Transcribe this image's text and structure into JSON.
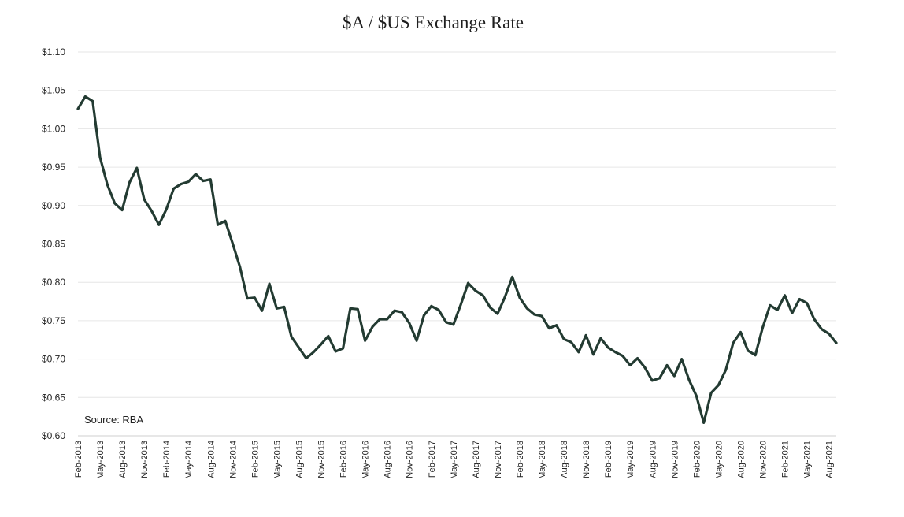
{
  "chart_data": {
    "type": "line",
    "title": "$A / $US Exchange Rate",
    "xlabel": "",
    "ylabel": "",
    "annotation": "Source: RBA",
    "ylim": [
      0.6,
      1.1
    ],
    "y_ticks": [
      0.6,
      0.65,
      0.7,
      0.75,
      0.8,
      0.85,
      0.9,
      0.95,
      1.0,
      1.05,
      1.1
    ],
    "y_tick_labels": [
      "$0.60",
      "$0.65",
      "$0.70",
      "$0.75",
      "$0.80",
      "$0.85",
      "$0.90",
      "$0.95",
      "$1.00",
      "$1.05",
      "$1.10"
    ],
    "x_tick_labels": [
      "Feb-2013",
      "May-2013",
      "Aug-2013",
      "Nov-2013",
      "Feb-2014",
      "May-2014",
      "Aug-2014",
      "Nov-2014",
      "Feb-2015",
      "May-2015",
      "Aug-2015",
      "Nov-2015",
      "Feb-2016",
      "May-2016",
      "Aug-2016",
      "Nov-2016",
      "Feb-2017",
      "May-2017",
      "Aug-2017",
      "Nov-2017",
      "Feb-2018",
      "May-2018",
      "Aug-2018",
      "Nov-2018",
      "Feb-2019",
      "May-2019",
      "Aug-2019",
      "Nov-2019",
      "Feb-2020",
      "May-2020",
      "Aug-2020",
      "Nov-2020",
      "Feb-2021",
      "May-2021",
      "Aug-2021"
    ],
    "x": [
      "Feb-2013",
      "Mar-2013",
      "Apr-2013",
      "May-2013",
      "Jun-2013",
      "Jul-2013",
      "Aug-2013",
      "Sep-2013",
      "Oct-2013",
      "Nov-2013",
      "Dec-2013",
      "Jan-2014",
      "Feb-2014",
      "Mar-2014",
      "Apr-2014",
      "May-2014",
      "Jun-2014",
      "Jul-2014",
      "Aug-2014",
      "Sep-2014",
      "Oct-2014",
      "Nov-2014",
      "Dec-2014",
      "Jan-2015",
      "Feb-2015",
      "Mar-2015",
      "Apr-2015",
      "May-2015",
      "Jun-2015",
      "Jul-2015",
      "Aug-2015",
      "Sep-2015",
      "Oct-2015",
      "Nov-2015",
      "Dec-2015",
      "Jan-2016",
      "Feb-2016",
      "Mar-2016",
      "Apr-2016",
      "May-2016",
      "Jun-2016",
      "Jul-2016",
      "Aug-2016",
      "Sep-2016",
      "Oct-2016",
      "Nov-2016",
      "Dec-2016",
      "Jan-2017",
      "Feb-2017",
      "Mar-2017",
      "Apr-2017",
      "May-2017",
      "Jun-2017",
      "Jul-2017",
      "Aug-2017",
      "Sep-2017",
      "Oct-2017",
      "Nov-2017",
      "Dec-2017",
      "Jan-2018",
      "Feb-2018",
      "Mar-2018",
      "Apr-2018",
      "May-2018",
      "Jun-2018",
      "Jul-2018",
      "Aug-2018",
      "Sep-2018",
      "Oct-2018",
      "Nov-2018",
      "Dec-2018",
      "Jan-2019",
      "Feb-2019",
      "Mar-2019",
      "Apr-2019",
      "May-2019",
      "Jun-2019",
      "Jul-2019",
      "Aug-2019",
      "Sep-2019",
      "Oct-2019",
      "Nov-2019",
      "Dec-2019",
      "Jan-2020",
      "Feb-2020",
      "Mar-2020",
      "Apr-2020",
      "May-2020",
      "Jun-2020",
      "Jul-2020",
      "Aug-2020",
      "Sep-2020",
      "Oct-2020",
      "Nov-2020",
      "Dec-2020",
      "Jan-2021",
      "Feb-2021",
      "Mar-2021",
      "Apr-2021",
      "May-2021",
      "Jun-2021",
      "Jul-2021",
      "Aug-2021",
      "Sep-2021"
    ],
    "series": [
      {
        "color": "#233b32",
        "values": [
          1.026,
          1.042,
          1.036,
          0.963,
          0.927,
          0.903,
          0.894,
          0.93,
          0.949,
          0.908,
          0.893,
          0.875,
          0.895,
          0.922,
          0.928,
          0.931,
          0.941,
          0.932,
          0.934,
          0.875,
          0.88,
          0.851,
          0.82,
          0.779,
          0.78,
          0.763,
          0.798,
          0.766,
          0.768,
          0.729,
          0.715,
          0.701,
          0.709,
          0.719,
          0.73,
          0.71,
          0.714,
          0.766,
          0.765,
          0.724,
          0.742,
          0.752,
          0.752,
          0.763,
          0.761,
          0.747,
          0.724,
          0.757,
          0.769,
          0.764,
          0.748,
          0.745,
          0.771,
          0.799,
          0.789,
          0.783,
          0.767,
          0.759,
          0.781,
          0.807,
          0.78,
          0.766,
          0.758,
          0.756,
          0.74,
          0.744,
          0.726,
          0.722,
          0.709,
          0.731,
          0.706,
          0.727,
          0.715,
          0.709,
          0.704,
          0.692,
          0.701,
          0.689,
          0.672,
          0.675,
          0.692,
          0.678,
          0.7,
          0.673,
          0.652,
          0.617,
          0.656,
          0.666,
          0.686,
          0.721,
          0.735,
          0.711,
          0.705,
          0.741,
          0.77,
          0.764,
          0.783,
          0.76,
          0.778,
          0.773,
          0.752,
          0.739,
          0.733,
          0.721
        ]
      }
    ],
    "grid": true,
    "legend": "none"
  }
}
